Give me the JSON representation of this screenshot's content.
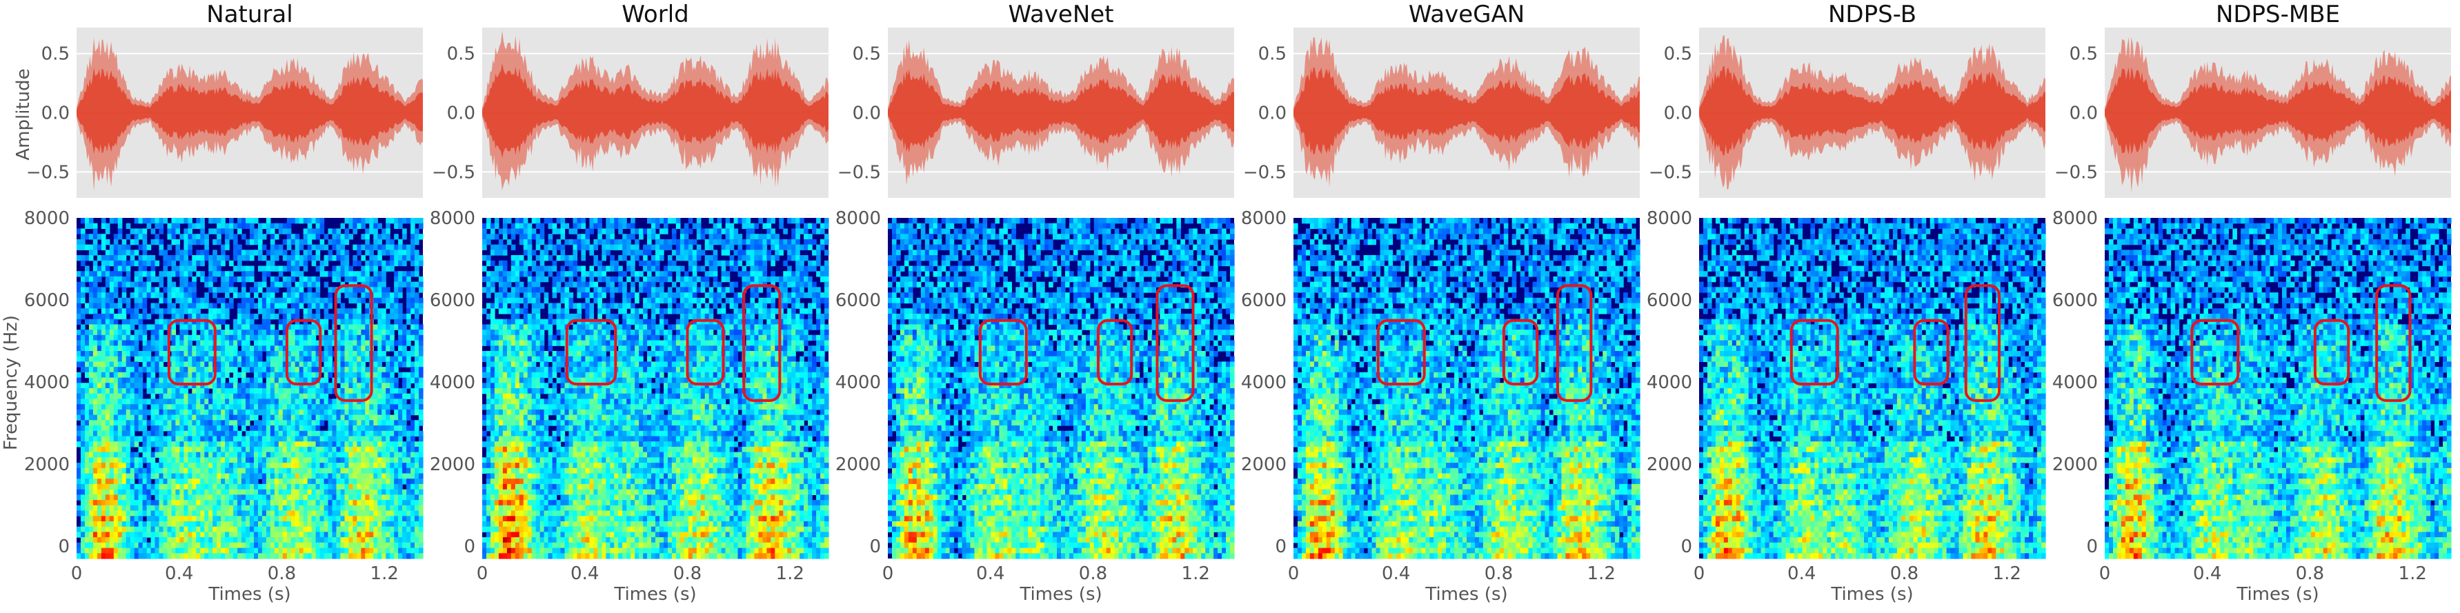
{
  "chart_data": {
    "type": "waveform-spectrogram",
    "panels": [
      {
        "title": "Natural",
        "env": [
          0.05,
          0.62,
          0.55,
          0.15,
          0.08,
          0.35,
          0.4,
          0.3,
          0.35,
          0.2,
          0.15,
          0.4,
          0.45,
          0.3,
          0.12,
          0.48,
          0.5,
          0.3,
          0.1,
          0.3
        ],
        "spec_seed": 11,
        "boxes": [
          {
            "t0": 0.36,
            "t1": 0.54,
            "f0": 3950,
            "f1": 5500
          },
          {
            "t0": 0.82,
            "t1": 0.95,
            "f0": 3950,
            "f1": 5500
          },
          {
            "t0": 1.01,
            "t1": 1.15,
            "f0": 3550,
            "f1": 6350
          }
        ]
      },
      {
        "title": "World",
        "env": [
          0.05,
          0.7,
          0.65,
          0.2,
          0.1,
          0.4,
          0.45,
          0.3,
          0.38,
          0.2,
          0.15,
          0.42,
          0.47,
          0.3,
          0.12,
          0.55,
          0.6,
          0.35,
          0.1,
          0.3
        ],
        "spec_seed": 23,
        "boxes": [
          {
            "t0": 0.33,
            "t1": 0.52,
            "f0": 3950,
            "f1": 5500
          },
          {
            "t0": 0.8,
            "t1": 0.94,
            "f0": 3950,
            "f1": 5500
          },
          {
            "t0": 1.02,
            "t1": 1.16,
            "f0": 3550,
            "f1": 6350
          }
        ]
      },
      {
        "title": "WaveNet",
        "env": [
          0.05,
          0.62,
          0.55,
          0.15,
          0.08,
          0.37,
          0.42,
          0.3,
          0.35,
          0.2,
          0.15,
          0.4,
          0.45,
          0.3,
          0.12,
          0.5,
          0.52,
          0.3,
          0.1,
          0.3
        ],
        "spec_seed": 37,
        "boxes": [
          {
            "t0": 0.36,
            "t1": 0.54,
            "f0": 3950,
            "f1": 5500
          },
          {
            "t0": 0.82,
            "t1": 0.95,
            "f0": 3950,
            "f1": 5500
          },
          {
            "t0": 1.05,
            "t1": 1.19,
            "f0": 3550,
            "f1": 6350
          }
        ]
      },
      {
        "title": "WaveGAN",
        "env": [
          0.05,
          0.64,
          0.57,
          0.16,
          0.08,
          0.36,
          0.41,
          0.3,
          0.36,
          0.2,
          0.15,
          0.4,
          0.45,
          0.3,
          0.12,
          0.5,
          0.52,
          0.3,
          0.1,
          0.3
        ],
        "spec_seed": 41,
        "boxes": [
          {
            "t0": 0.33,
            "t1": 0.51,
            "f0": 3950,
            "f1": 5500
          },
          {
            "t0": 0.82,
            "t1": 0.95,
            "f0": 3950,
            "f1": 5500
          },
          {
            "t0": 1.03,
            "t1": 1.16,
            "f0": 3550,
            "f1": 6350
          }
        ]
      },
      {
        "title": "NDPS-B",
        "env": [
          0.05,
          0.62,
          0.56,
          0.15,
          0.08,
          0.36,
          0.42,
          0.3,
          0.36,
          0.2,
          0.15,
          0.4,
          0.45,
          0.3,
          0.12,
          0.5,
          0.55,
          0.3,
          0.1,
          0.3
        ],
        "spec_seed": 53,
        "boxes": [
          {
            "t0": 0.36,
            "t1": 0.54,
            "f0": 3950,
            "f1": 5500
          },
          {
            "t0": 0.84,
            "t1": 0.97,
            "f0": 3950,
            "f1": 5500
          },
          {
            "t0": 1.04,
            "t1": 1.17,
            "f0": 3550,
            "f1": 6350
          }
        ]
      },
      {
        "title": "NDPS-MBE",
        "env": [
          0.05,
          0.62,
          0.55,
          0.15,
          0.08,
          0.36,
          0.42,
          0.3,
          0.35,
          0.2,
          0.15,
          0.4,
          0.45,
          0.3,
          0.12,
          0.5,
          0.52,
          0.3,
          0.1,
          0.3
        ],
        "spec_seed": 67,
        "boxes": [
          {
            "t0": 0.34,
            "t1": 0.52,
            "f0": 3950,
            "f1": 5500
          },
          {
            "t0": 0.82,
            "t1": 0.95,
            "f0": 3950,
            "f1": 5500
          },
          {
            "t0": 1.06,
            "t1": 1.19,
            "f0": 3550,
            "f1": 6350
          }
        ]
      }
    ],
    "waveform": {
      "ylabel": "Amplitude",
      "ylim": [
        -0.72,
        0.72
      ],
      "yticks": [
        -0.5,
        0.0,
        0.5
      ],
      "ytick_labels": [
        "−0.5",
        "0.0",
        "0.5"
      ],
      "grid": true,
      "color": "#E24A33",
      "background": "#E5E5E5"
    },
    "spectrogram": {
      "ylabel": "Frequency (Hz)",
      "ylim": [
        -300,
        8000
      ],
      "yticks": [
        0,
        2000,
        4000,
        6000,
        8000
      ],
      "ytick_labels": [
        "0",
        "2000",
        "4000",
        "6000",
        "8000"
      ],
      "xlabel": "Times (s)",
      "xlim": [
        0,
        1.35
      ],
      "xticks": [
        0,
        0.4,
        0.8,
        1.2
      ],
      "xtick_labels": [
        "0",
        "0.4",
        "0.8",
        "1.2"
      ],
      "colormap": "jet",
      "box_color": "#E8141E"
    }
  }
}
